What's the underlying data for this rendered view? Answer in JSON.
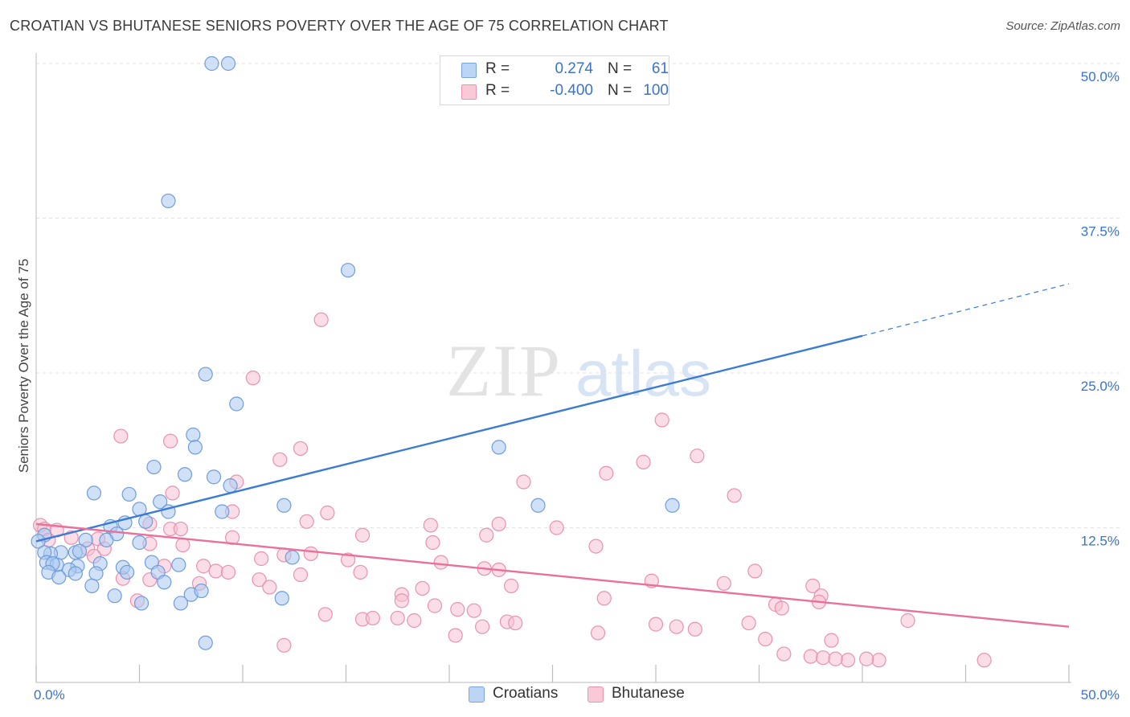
{
  "header": {
    "title": "CROATIAN VS BHUTANESE SENIORS POVERTY OVER THE AGE OF 75 CORRELATION CHART",
    "source": "Source: ZipAtlas.com"
  },
  "watermark": {
    "zip": "ZIP",
    "atlas": "atlas"
  },
  "legend": {
    "rows": [
      {
        "r_label": "R =",
        "r_value": "0.274",
        "n_label": "N =",
        "n_value": "61",
        "color": "#a9c8f0"
      },
      {
        "r_label": "R =",
        "r_value": "-0.400",
        "n_label": "N =",
        "n_value": "100",
        "color": "#f5b8cb"
      }
    ]
  },
  "bottom_legend": {
    "croatians": "Croatians",
    "bhutanese": "Bhutanese"
  },
  "chart_data": {
    "type": "scatter",
    "title": "CROATIAN VS BHUTANESE SENIORS POVERTY OVER THE AGE OF 75 CORRELATION CHART",
    "xlabel": "",
    "ylabel": "Seniors Poverty Over the Age of 75",
    "xlim": [
      0,
      50
    ],
    "ylim": [
      0,
      50
    ],
    "x_tick_labels": [
      "0.0%",
      "50.0%"
    ],
    "y_ticks": [
      12.5,
      25.0,
      37.5,
      50.0
    ],
    "y_tick_labels": [
      "12.5%",
      "25.0%",
      "37.5%",
      "50.0%"
    ],
    "grid": true,
    "legend_position": "top-center",
    "colors": {
      "croatians": "#3a7bd5",
      "bhutanese": "#e8709a"
    },
    "series": [
      {
        "name": "Croatians",
        "color": "#3a7bd5",
        "trend": {
          "x": [
            0,
            40
          ],
          "y": [
            11.4,
            28.0
          ],
          "dashed_to": [
            50,
            32.2
          ]
        },
        "points": [
          [
            8.5,
            50.0
          ],
          [
            9.3,
            50.0
          ],
          [
            6.4,
            38.9
          ],
          [
            15.1,
            33.3
          ],
          [
            8.2,
            24.9
          ],
          [
            9.7,
            22.5
          ],
          [
            7.6,
            20.0
          ],
          [
            7.7,
            19.0
          ],
          [
            22.4,
            19.0
          ],
          [
            5.7,
            17.4
          ],
          [
            7.2,
            16.8
          ],
          [
            8.6,
            16.6
          ],
          [
            9.4,
            15.9
          ],
          [
            2.8,
            15.3
          ],
          [
            4.5,
            15.2
          ],
          [
            6.0,
            14.6
          ],
          [
            24.3,
            14.3
          ],
          [
            30.8,
            14.3
          ],
          [
            12.0,
            14.3
          ],
          [
            5.0,
            14.0
          ],
          [
            6.4,
            13.8
          ],
          [
            9.0,
            13.8
          ],
          [
            5.3,
            13.0
          ],
          [
            3.6,
            12.6
          ],
          [
            4.3,
            12.9
          ],
          [
            3.9,
            12.0
          ],
          [
            0.4,
            11.9
          ],
          [
            3.4,
            11.5
          ],
          [
            5.0,
            11.3
          ],
          [
            2.4,
            11.5
          ],
          [
            0.1,
            11.4
          ],
          [
            1.9,
            10.5
          ],
          [
            1.2,
            10.5
          ],
          [
            0.7,
            10.4
          ],
          [
            2.1,
            10.6
          ],
          [
            0.4,
            10.5
          ],
          [
            12.4,
            10.1
          ],
          [
            0.5,
            9.7
          ],
          [
            1.0,
            9.5
          ],
          [
            0.8,
            9.6
          ],
          [
            2.0,
            9.4
          ],
          [
            3.1,
            9.6
          ],
          [
            4.2,
            9.3
          ],
          [
            5.6,
            9.7
          ],
          [
            6.9,
            9.5
          ],
          [
            1.6,
            9.1
          ],
          [
            0.6,
            8.9
          ],
          [
            1.9,
            8.8
          ],
          [
            4.4,
            8.9
          ],
          [
            5.9,
            8.9
          ],
          [
            2.9,
            8.8
          ],
          [
            1.1,
            8.5
          ],
          [
            6.2,
            8.1
          ],
          [
            2.7,
            7.8
          ],
          [
            3.8,
            7.0
          ],
          [
            7.5,
            7.1
          ],
          [
            8.0,
            7.4
          ],
          [
            11.9,
            6.8
          ],
          [
            5.1,
            6.4
          ],
          [
            7.0,
            6.4
          ],
          [
            8.2,
            3.2
          ]
        ]
      },
      {
        "name": "Bhutanese",
        "color": "#e8709a",
        "trend": {
          "x": [
            0,
            50
          ],
          "y": [
            12.8,
            4.5
          ]
        },
        "points": [
          [
            13.8,
            29.3
          ],
          [
            10.5,
            24.6
          ],
          [
            30.3,
            21.2
          ],
          [
            4.1,
            19.9
          ],
          [
            6.5,
            19.5
          ],
          [
            12.8,
            18.9
          ],
          [
            32.0,
            18.3
          ],
          [
            11.8,
            18.0
          ],
          [
            29.4,
            17.8
          ],
          [
            27.6,
            16.9
          ],
          [
            23.6,
            16.2
          ],
          [
            9.7,
            16.2
          ],
          [
            33.8,
            15.1
          ],
          [
            6.6,
            15.3
          ],
          [
            0.2,
            12.7
          ],
          [
            0.4,
            12.4
          ],
          [
            0.6,
            11.5
          ],
          [
            1.0,
            12.3
          ],
          [
            5.5,
            12.8
          ],
          [
            6.5,
            12.4
          ],
          [
            7.0,
            12.4
          ],
          [
            9.5,
            13.8
          ],
          [
            14.1,
            13.7
          ],
          [
            13.1,
            13.0
          ],
          [
            19.1,
            12.7
          ],
          [
            22.4,
            12.8
          ],
          [
            25.2,
            12.5
          ],
          [
            15.8,
            11.9
          ],
          [
            21.8,
            11.9
          ],
          [
            9.5,
            11.7
          ],
          [
            1.7,
            11.7
          ],
          [
            3.0,
            11.6
          ],
          [
            5.5,
            11.2
          ],
          [
            7.1,
            11.1
          ],
          [
            19.2,
            11.3
          ],
          [
            27.1,
            11.0
          ],
          [
            2.5,
            10.8
          ],
          [
            3.3,
            10.8
          ],
          [
            2.8,
            10.2
          ],
          [
            13.3,
            10.4
          ],
          [
            12.0,
            10.3
          ],
          [
            10.9,
            10.0
          ],
          [
            15.1,
            9.9
          ],
          [
            19.6,
            9.7
          ],
          [
            6.2,
            9.4
          ],
          [
            8.1,
            9.4
          ],
          [
            8.7,
            9.0
          ],
          [
            9.3,
            8.9
          ],
          [
            12.8,
            8.7
          ],
          [
            15.7,
            8.9
          ],
          [
            21.7,
            9.2
          ],
          [
            22.4,
            9.1
          ],
          [
            29.8,
            8.2
          ],
          [
            34.8,
            9.0
          ],
          [
            4.2,
            8.4
          ],
          [
            5.5,
            8.3
          ],
          [
            7.9,
            8.0
          ],
          [
            10.8,
            8.3
          ],
          [
            11.3,
            7.7
          ],
          [
            18.7,
            7.6
          ],
          [
            23.0,
            7.8
          ],
          [
            27.5,
            6.8
          ],
          [
            33.3,
            8.0
          ],
          [
            37.6,
            7.8
          ],
          [
            4.9,
            6.6
          ],
          [
            17.7,
            7.1
          ],
          [
            19.3,
            6.2
          ],
          [
            35.8,
            6.3
          ],
          [
            38.0,
            7.0
          ],
          [
            36.1,
            6.0
          ],
          [
            17.7,
            6.6
          ],
          [
            37.9,
            6.5
          ],
          [
            15.8,
            5.1
          ],
          [
            17.5,
            5.2
          ],
          [
            20.4,
            5.9
          ],
          [
            21.2,
            5.8
          ],
          [
            18.3,
            5.0
          ],
          [
            16.3,
            5.2
          ],
          [
            14.0,
            5.5
          ],
          [
            34.5,
            4.8
          ],
          [
            42.2,
            5.0
          ],
          [
            31.0,
            4.5
          ],
          [
            21.6,
            4.5
          ],
          [
            30.0,
            4.7
          ],
          [
            22.8,
            4.9
          ],
          [
            27.2,
            4.0
          ],
          [
            35.3,
            3.5
          ],
          [
            31.9,
            4.3
          ],
          [
            38.5,
            3.4
          ],
          [
            12.0,
            3.0
          ],
          [
            20.3,
            3.8
          ],
          [
            37.5,
            2.1
          ],
          [
            36.2,
            2.3
          ],
          [
            38.1,
            2.0
          ],
          [
            39.3,
            1.8
          ],
          [
            40.8,
            1.8
          ],
          [
            38.7,
            1.9
          ],
          [
            45.9,
            1.8
          ],
          [
            23.2,
            4.8
          ],
          [
            40.2,
            1.9
          ]
        ]
      }
    ]
  }
}
